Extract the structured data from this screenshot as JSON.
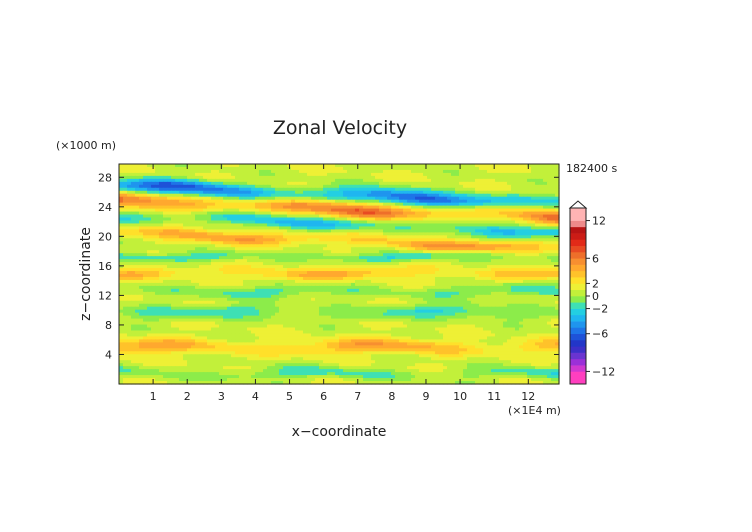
{
  "chart_data": {
    "type": "heatmap",
    "title": "Zonal Velocity",
    "xlabel": "x−coordinate",
    "ylabel": "z−coordinate",
    "x_unit": "(×1E4 m)",
    "y_unit": "(×1000 m)",
    "time_label": "182400 s",
    "xlim": [
      0,
      12.9
    ],
    "ylim": [
      0,
      29.8
    ],
    "x_ticks": [
      "1",
      "2",
      "3",
      "4",
      "5",
      "6",
      "7",
      "8",
      "9",
      "10",
      "11",
      "12"
    ],
    "y_ticks": [
      "4",
      "8",
      "12",
      "16",
      "20",
      "24",
      "28"
    ],
    "colorbar": {
      "labels": [
        "12",
        "6",
        "2",
        "0",
        "−2",
        "−6",
        "−12"
      ],
      "label_values": [
        12,
        6,
        2,
        0,
        -2,
        -6,
        -12
      ],
      "levels": [
        -14,
        -12,
        -11,
        -10,
        -9,
        -8,
        -7,
        -6,
        -5,
        -4,
        -3,
        -2,
        -1,
        0,
        1,
        2,
        3,
        4,
        5,
        6,
        7,
        8,
        9,
        10,
        11,
        12,
        14
      ],
      "colors": [
        "#ff3fbf",
        "#d038d0",
        "#9b30d8",
        "#6a34d0",
        "#3c2fc8",
        "#2236c8",
        "#1e52d8",
        "#1e74e8",
        "#1f95ee",
        "#1fb6f0",
        "#23cfe2",
        "#3ee0b4",
        "#8cec4a",
        "#c2f03a",
        "#eef035",
        "#ffe02a",
        "#ffc22a",
        "#ffa82e",
        "#f78f30",
        "#ee6f2a",
        "#e84a22",
        "#e22a18",
        "#cc1c16",
        "#b81414",
        "#ee8a8a",
        "#ffb4b4"
      ]
    },
    "bands": [
      {
        "z": 25.7,
        "w": 1.0,
        "a": -6.5
      },
      {
        "z": 23.8,
        "w": 1.0,
        "a": 5.5
      },
      {
        "z": 21.8,
        "w": 0.8,
        "a": -4
      },
      {
        "z": 19.5,
        "w": 0.8,
        "a": 4
      },
      {
        "z": 17.3,
        "w": 0.6,
        "a": -2.5
      },
      {
        "z": 15.0,
        "w": 0.8,
        "a": 3
      },
      {
        "z": 12.5,
        "w": 0.8,
        "a": -2
      },
      {
        "z": 9.7,
        "w": 0.9,
        "a": -2.5
      },
      {
        "z": 5.0,
        "w": 1.0,
        "a": 3.5
      },
      {
        "z": 1.4,
        "w": 0.8,
        "a": -2
      }
    ]
  }
}
